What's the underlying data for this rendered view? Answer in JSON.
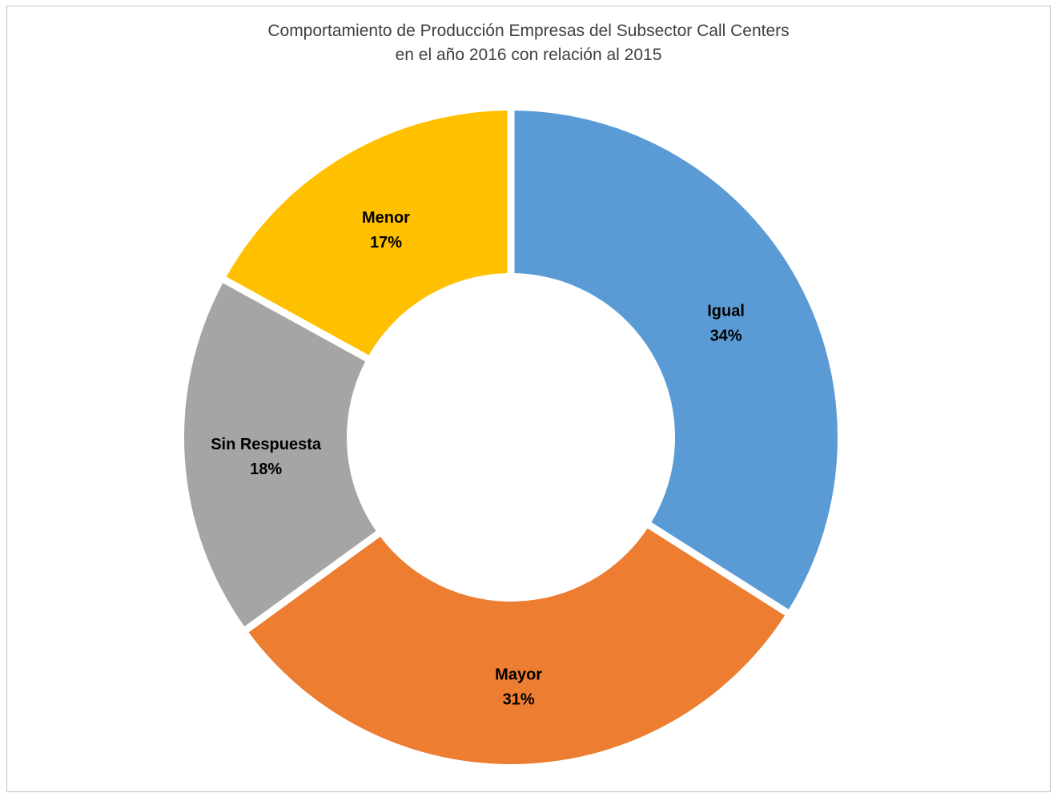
{
  "chart_data": {
    "type": "pie",
    "style": "donut",
    "title": "Comportamiento de Producción Empresas del Subsector Call Centers",
    "subtitle": "en el año 2016 con relación al 2015",
    "legend": "none",
    "slices": [
      {
        "label": "Igual",
        "value": 34,
        "value_label": "34%",
        "color": "#5b9bd5"
      },
      {
        "label": "Mayor",
        "value": 31,
        "value_label": "31%",
        "color": "#ed7d31"
      },
      {
        "label": "Sin Respuesta",
        "value": 18,
        "value_label": "18%",
        "color": "#a5a5a5"
      },
      {
        "label": "Menor",
        "value": 17,
        "value_label": "17%",
        "color": "#ffc000"
      }
    ]
  }
}
